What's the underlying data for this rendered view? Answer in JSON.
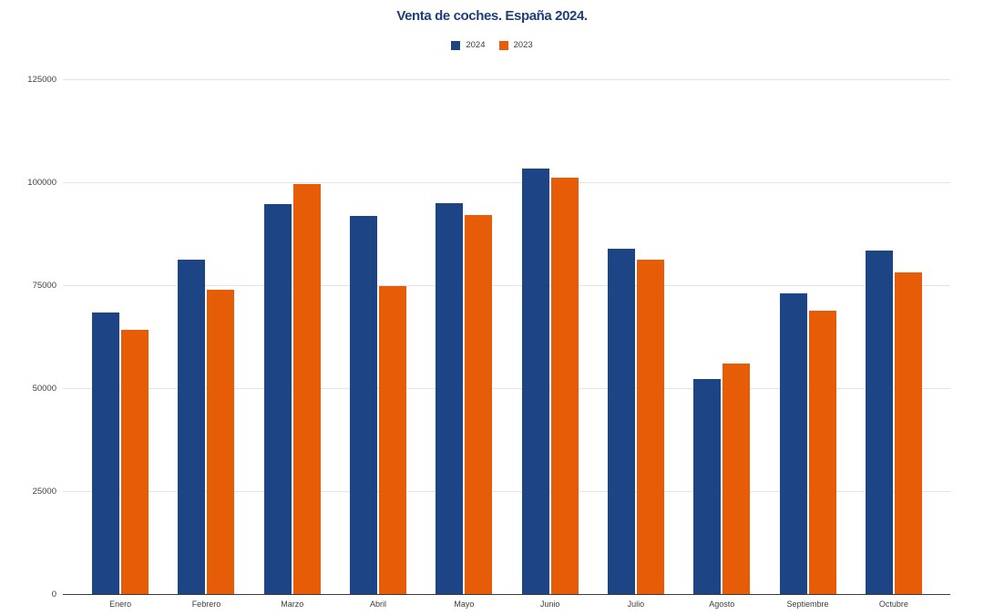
{
  "page": {
    "background": "#ffffff"
  },
  "chart_data": {
    "type": "bar",
    "title": "Venta de coches. España 2024.",
    "title_color": "#203e78",
    "categories": [
      "Enero",
      "Febrero",
      "Marzo",
      "Abril",
      "Mayo",
      "Junio",
      "Julio",
      "Agosto",
      "Septiembre",
      "Octubre"
    ],
    "series": [
      {
        "name": "2024",
        "color": "#1d4586",
        "values": [
          68400,
          81200,
          94700,
          91800,
          95000,
          103300,
          83900,
          52200,
          73100,
          83400
        ]
      },
      {
        "name": "2023",
        "color": "#e75c06",
        "values": [
          64100,
          74000,
          99500,
          74700,
          92000,
          101100,
          81100,
          56000,
          68900,
          78000
        ]
      }
    ],
    "xlabel": "",
    "ylabel": "",
    "ylim": [
      0,
      125000
    ],
    "ytick_step": 25000,
    "yticks": [
      "0",
      "25000",
      "50000",
      "75000",
      "100000",
      "125000"
    ],
    "grid": true,
    "legend_position": "top",
    "gridline_color": "#e4e4e4",
    "axis_line_color": "#3a3a3a",
    "tick_label_color": "#3c3c3c"
  }
}
